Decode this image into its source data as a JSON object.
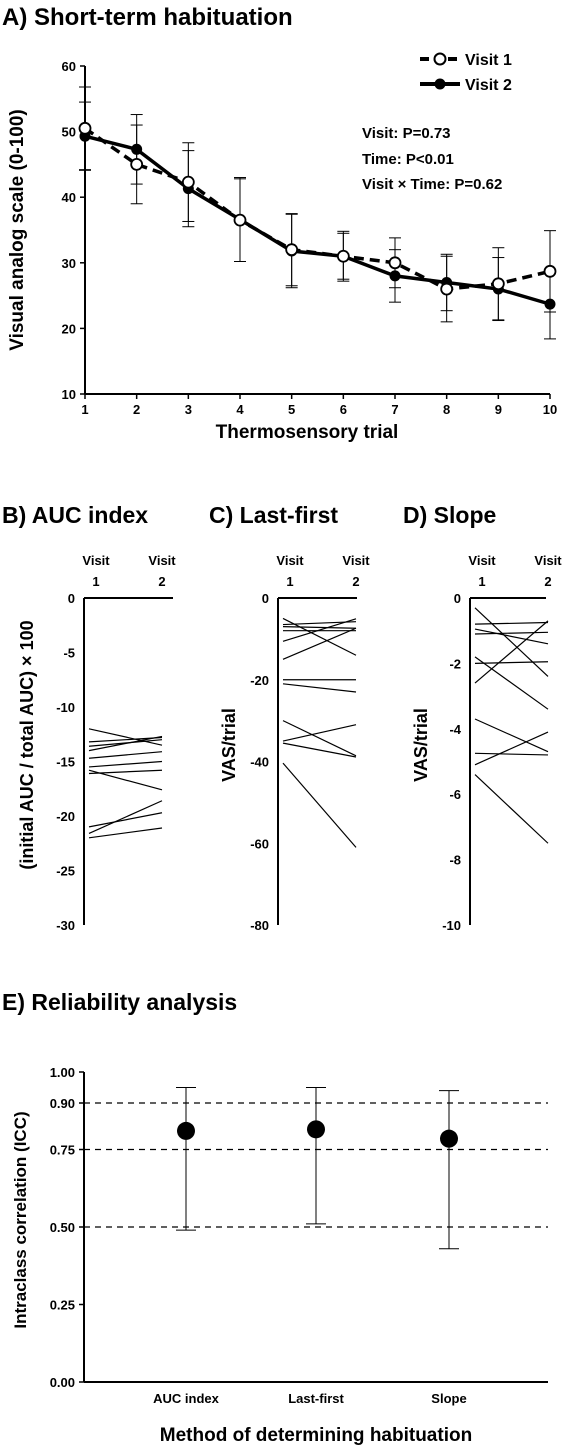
{
  "chart_data": [
    {
      "panel": "A",
      "type": "line",
      "title": "A) Short-term habituation",
      "xlabel": "Thermosensory trial",
      "ylabel": "Visual analog scale (0-100)",
      "x": [
        1,
        2,
        3,
        4,
        5,
        6,
        7,
        8,
        9,
        10
      ],
      "xlim": [
        1,
        10
      ],
      "ylim": [
        10,
        60
      ],
      "yticks": [
        10,
        20,
        30,
        40,
        50,
        60
      ],
      "series": [
        {
          "name": "Visit 1",
          "style": "dashed",
          "marker": "open-circle",
          "values": [
            50.5,
            45,
            42.3,
            36.5,
            32,
            31,
            30,
            26,
            26.8,
            28.7
          ],
          "err": [
            6.3,
            6,
            6,
            6.3,
            5.5,
            3.5,
            3.8,
            5,
            5.5,
            6.2
          ]
        },
        {
          "name": "Visit 2",
          "style": "solid",
          "marker": "filled-circle",
          "values": [
            49.3,
            47.3,
            41.3,
            36.6,
            31.8,
            31,
            28,
            27,
            26,
            23.7
          ],
          "err": [
            5.2,
            5.3,
            5.8,
            6.4,
            5.6,
            3.8,
            4,
            4.3,
            4.8,
            5.3
          ]
        }
      ],
      "annotations": [
        "Visit: P=0.73",
        "Time: P<0.01",
        "Visit × Time: P=0.62"
      ]
    },
    {
      "panel": "B",
      "type": "line",
      "title": "B) AUC index",
      "ylabel": "(initial AUC / total AUC) × 100",
      "categories": [
        "Visit 1",
        "Visit 2"
      ],
      "ylim": [
        -30,
        0
      ],
      "yticks": [
        0,
        -5,
        -10,
        -15,
        -20,
        -25,
        -30
      ],
      "pairs": [
        [
          -12,
          -13.5
        ],
        [
          -13.2,
          -12.8
        ],
        [
          -13.6,
          -13.0
        ],
        [
          -14,
          -12.7
        ],
        [
          -14.7,
          -14.1
        ],
        [
          -15.5,
          -15.0
        ],
        [
          -15.8,
          -17.6
        ],
        [
          -16.1,
          -15.8
        ],
        [
          -21,
          -19.7
        ],
        [
          -21.6,
          -18.6
        ],
        [
          -22,
          -21.1
        ]
      ]
    },
    {
      "panel": "C",
      "type": "line",
      "title": "C) Last-first",
      "ylabel": "VAS/trial",
      "categories": [
        "Visit 1",
        "Visit 2"
      ],
      "ylim": [
        -80,
        0
      ],
      "yticks": [
        0,
        -20,
        -40,
        -60,
        -80
      ],
      "pairs": [
        [
          -5,
          -14
        ],
        [
          -6.5,
          -5.8
        ],
        [
          -7,
          -7.4
        ],
        [
          -8,
          -8
        ],
        [
          -10.6,
          -5.1
        ],
        [
          -15,
          -7.4
        ],
        [
          -20,
          -20
        ],
        [
          -21,
          -23
        ],
        [
          -30,
          -38.6
        ],
        [
          -35,
          -31
        ],
        [
          -35.5,
          -38.9
        ],
        [
          -40.4,
          -61
        ]
      ]
    },
    {
      "panel": "D",
      "type": "line",
      "title": "D) Slope",
      "ylabel": "VAS/trial",
      "categories": [
        "Visit 1",
        "Visit 2"
      ],
      "ylim": [
        -10,
        0
      ],
      "yticks": [
        0,
        -2,
        -4,
        -6,
        -8,
        -10
      ],
      "pairs": [
        [
          -0.3,
          -2.4
        ],
        [
          -0.8,
          -0.75
        ],
        [
          -0.95,
          -1.4
        ],
        [
          -1.1,
          -1.05
        ],
        [
          -1.8,
          -3.4
        ],
        [
          -2.0,
          -1.95
        ],
        [
          -2.6,
          -0.7
        ],
        [
          -3.7,
          -4.7
        ],
        [
          -4.75,
          -4.8
        ],
        [
          -5.1,
          -4.1
        ],
        [
          -5.4,
          -7.5
        ]
      ]
    },
    {
      "panel": "E",
      "type": "scatter",
      "title": "E) Reliability analysis",
      "xlabel": "Method of determining habituation",
      "ylabel": "Intraclass correlation (ICC)",
      "categories": [
        "AUC index",
        "Last-first",
        "Slope"
      ],
      "values": [
        0.81,
        0.815,
        0.785
      ],
      "ci_low": [
        0.49,
        0.51,
        0.43
      ],
      "ci_high": [
        0.95,
        0.95,
        0.94
      ],
      "ylim": [
        0,
        1
      ],
      "yticks": [
        "0.00",
        "0.25",
        "0.50",
        "0.75",
        "0.90",
        "1.00"
      ],
      "reference_lines": [
        0.5,
        0.75,
        0.9
      ]
    }
  ]
}
